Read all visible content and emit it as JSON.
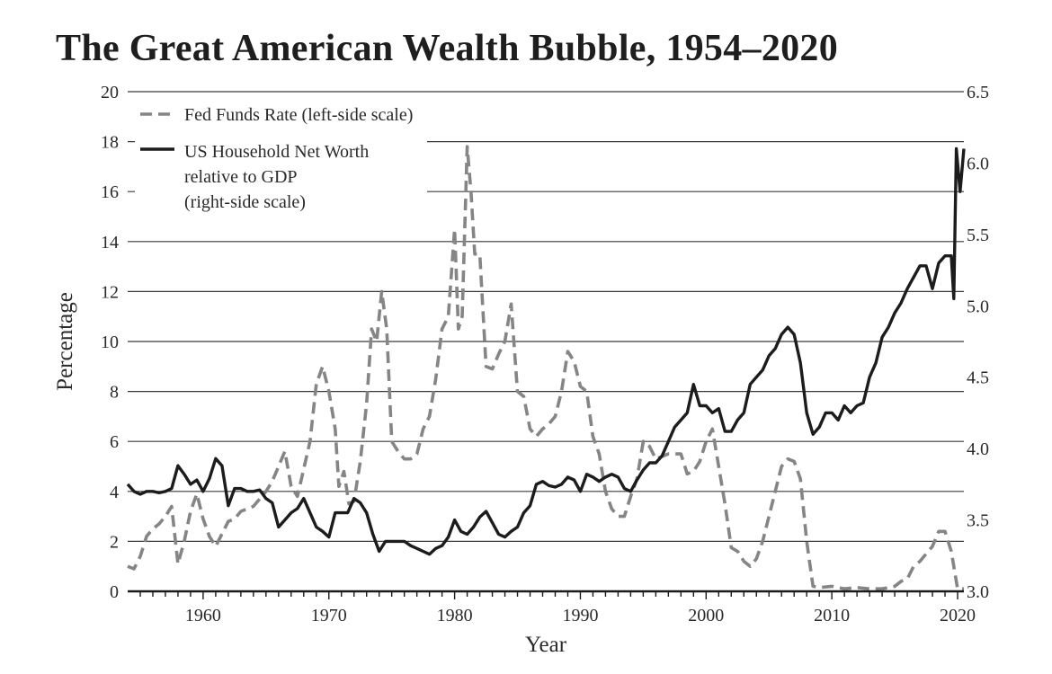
{
  "title": "The Great American Wealth Bubble, 1954–2020",
  "chart_data": {
    "type": "line",
    "title": "The Great American Wealth Bubble, 1954–2020",
    "xlabel": "Year",
    "ylabel": "Percentage",
    "xlim": [
      1954,
      2020.5
    ],
    "ylim": [
      0,
      20
    ],
    "y2lim": [
      3.0,
      6.5
    ],
    "x_ticks": [
      "1960",
      "1970",
      "1980",
      "1990",
      "2000",
      "2010",
      "2020"
    ],
    "y_ticks": [
      "0",
      "2",
      "4",
      "6",
      "8",
      "10",
      "12",
      "14",
      "16",
      "18",
      "20"
    ],
    "y2_ticks": [
      "3.0",
      "3.5",
      "4.0",
      "4.5",
      "5.0",
      "5.5",
      "6.0",
      "6.5"
    ],
    "grid": true,
    "legend": {
      "placement": "top-left",
      "fed_label": "Fed Funds Rate (left-side scale)",
      "nw_label_lines": [
        "US Household Net Worth",
        "relative to GDP",
        "(right-side scale)"
      ]
    },
    "series": [
      {
        "name": "Fed Funds Rate (left-side scale)",
        "axis": "left",
        "style": "dashed",
        "color": "#858585",
        "x": [
          1954.0,
          1954.5,
          1955.0,
          1955.5,
          1956.0,
          1956.5,
          1957.0,
          1957.5,
          1958.0,
          1958.5,
          1959.0,
          1959.5,
          1960.0,
          1960.5,
          1961.0,
          1961.5,
          1962.0,
          1962.5,
          1963.0,
          1964.0,
          1965.0,
          1965.5,
          1966.0,
          1966.5,
          1967.0,
          1967.5,
          1968.0,
          1968.5,
          1969.0,
          1969.5,
          1970.0,
          1970.5,
          1970.8,
          1971.2,
          1971.6,
          1972.0,
          1972.5,
          1973.0,
          1973.4,
          1973.8,
          1974.2,
          1974.6,
          1975.0,
          1975.5,
          1976.0,
          1976.5,
          1977.0,
          1977.5,
          1978.0,
          1978.5,
          1979.0,
          1979.5,
          1980.0,
          1980.3,
          1980.6,
          1981.0,
          1981.3,
          1981.6,
          1982.0,
          1982.5,
          1983.0,
          1983.5,
          1984.0,
          1984.5,
          1985.0,
          1985.5,
          1986.0,
          1986.5,
          1987.0,
          1987.5,
          1988.0,
          1988.5,
          1989.0,
          1989.5,
          1990.0,
          1990.5,
          1991.0,
          1991.5,
          1992.0,
          1992.5,
          1993.0,
          1993.5,
          1994.0,
          1994.5,
          1995.0,
          1995.5,
          1996.0,
          1997.0,
          1998.0,
          1998.5,
          1999.0,
          1999.5,
          2000.0,
          2000.5,
          2001.0,
          2001.5,
          2002.0,
          2002.5,
          2003.0,
          2003.5,
          2004.0,
          2004.5,
          2005.0,
          2005.5,
          2006.0,
          2006.5,
          2007.0,
          2007.5,
          2008.0,
          2008.5,
          2009.0,
          2010.0,
          2011.0,
          2012.0,
          2013.0,
          2014.0,
          2015.0,
          2015.5,
          2016.0,
          2016.5,
          2017.0,
          2017.5,
          2018.0,
          2018.5,
          2019.0,
          2019.5,
          2020.0,
          2020.5
        ],
        "values": [
          1.0,
          0.9,
          1.4,
          2.2,
          2.5,
          2.7,
          3.0,
          3.4,
          1.1,
          2.0,
          3.2,
          3.9,
          2.9,
          2.2,
          1.8,
          2.3,
          2.8,
          2.9,
          3.2,
          3.4,
          4.0,
          4.4,
          5.0,
          5.6,
          4.2,
          3.8,
          4.9,
          6.0,
          8.3,
          9.0,
          8.0,
          6.5,
          4.2,
          4.8,
          3.5,
          3.6,
          5.2,
          7.5,
          10.5,
          10.0,
          12.0,
          10.5,
          6.0,
          5.6,
          5.3,
          5.3,
          5.5,
          6.5,
          7.0,
          8.5,
          10.5,
          11.0,
          14.5,
          10.5,
          11.0,
          17.8,
          16.0,
          13.5,
          13.5,
          9.0,
          8.9,
          9.5,
          10.0,
          11.5,
          8.0,
          7.8,
          6.5,
          6.2,
          6.5,
          6.7,
          7.0,
          8.0,
          9.6,
          9.2,
          8.2,
          8.0,
          6.2,
          5.5,
          4.0,
          3.3,
          3.0,
          3.0,
          3.8,
          4.5,
          6.0,
          5.8,
          5.3,
          5.5,
          5.5,
          4.7,
          4.8,
          5.2,
          6.0,
          6.5,
          5.0,
          3.5,
          1.75,
          1.6,
          1.2,
          1.0,
          1.3,
          2.0,
          3.0,
          4.0,
          5.0,
          5.3,
          5.2,
          4.5,
          2.0,
          0.2,
          0.15,
          0.2,
          0.1,
          0.15,
          0.1,
          0.1,
          0.2,
          0.4,
          0.5,
          1.0,
          1.2,
          1.5,
          1.8,
          2.4,
          2.4,
          1.6,
          0.1,
          0.1
        ]
      },
      {
        "name": "US Household Net Worth relative to GDP (right-side scale)",
        "axis": "right",
        "style": "solid",
        "color": "#1c1c1c",
        "x": [
          1954.0,
          1954.5,
          1955.0,
          1955.5,
          1956.0,
          1956.5,
          1957.0,
          1957.5,
          1958.0,
          1958.5,
          1959.0,
          1959.5,
          1960.0,
          1960.5,
          1961.0,
          1961.5,
          1962.0,
          1962.5,
          1963.0,
          1963.5,
          1964.0,
          1964.5,
          1965.0,
          1965.5,
          1966.0,
          1966.5,
          1967.0,
          1967.5,
          1968.0,
          1968.5,
          1969.0,
          1969.5,
          1970.0,
          1970.5,
          1971.0,
          1971.5,
          1972.0,
          1972.5,
          1973.0,
          1973.5,
          1974.0,
          1974.5,
          1975.0,
          1975.5,
          1976.0,
          1976.5,
          1977.0,
          1977.5,
          1978.0,
          1978.5,
          1979.0,
          1979.5,
          1980.0,
          1980.5,
          1981.0,
          1981.5,
          1982.0,
          1982.5,
          1983.0,
          1983.5,
          1984.0,
          1984.5,
          1985.0,
          1985.5,
          1986.0,
          1986.5,
          1987.0,
          1987.5,
          1988.0,
          1988.5,
          1989.0,
          1989.5,
          1990.0,
          1990.5,
          1991.0,
          1991.5,
          1992.0,
          1992.5,
          1993.0,
          1993.5,
          1994.0,
          1994.5,
          1995.0,
          1995.5,
          1996.0,
          1996.5,
          1997.0,
          1997.5,
          1998.0,
          1998.5,
          1999.0,
          1999.5,
          2000.0,
          2000.5,
          2001.0,
          2001.5,
          2002.0,
          2002.5,
          2003.0,
          2003.5,
          2004.0,
          2004.5,
          2005.0,
          2005.5,
          2006.0,
          2006.5,
          2007.0,
          2007.5,
          2008.0,
          2008.5,
          2009.0,
          2009.5,
          2010.0,
          2010.5,
          2011.0,
          2011.5,
          2012.0,
          2012.5,
          2013.0,
          2013.5,
          2014.0,
          2014.5,
          2015.0,
          2015.5,
          2016.0,
          2016.5,
          2017.0,
          2017.5,
          2018.0,
          2018.5,
          2019.0,
          2019.5,
          2019.7,
          2019.9,
          2020.2,
          2020.5
        ],
        "values": [
          3.75,
          3.7,
          3.68,
          3.7,
          3.7,
          3.69,
          3.7,
          3.72,
          3.88,
          3.82,
          3.75,
          3.78,
          3.7,
          3.79,
          3.93,
          3.88,
          3.6,
          3.72,
          3.72,
          3.7,
          3.7,
          3.71,
          3.65,
          3.62,
          3.45,
          3.5,
          3.55,
          3.58,
          3.65,
          3.55,
          3.45,
          3.42,
          3.38,
          3.55,
          3.55,
          3.55,
          3.65,
          3.62,
          3.55,
          3.4,
          3.28,
          3.35,
          3.35,
          3.35,
          3.35,
          3.32,
          3.3,
          3.28,
          3.26,
          3.3,
          3.32,
          3.38,
          3.5,
          3.42,
          3.4,
          3.45,
          3.52,
          3.56,
          3.48,
          3.4,
          3.38,
          3.42,
          3.45,
          3.55,
          3.6,
          3.75,
          3.77,
          3.74,
          3.73,
          3.75,
          3.8,
          3.78,
          3.7,
          3.82,
          3.8,
          3.77,
          3.8,
          3.82,
          3.8,
          3.72,
          3.7,
          3.78,
          3.85,
          3.9,
          3.9,
          3.95,
          4.05,
          4.15,
          4.2,
          4.25,
          4.45,
          4.3,
          4.3,
          4.25,
          4.28,
          4.12,
          4.12,
          4.2,
          4.25,
          4.45,
          4.5,
          4.55,
          4.65,
          4.7,
          4.8,
          4.85,
          4.8,
          4.6,
          4.25,
          4.1,
          4.15,
          4.25,
          4.25,
          4.2,
          4.3,
          4.25,
          4.3,
          4.32,
          4.5,
          4.6,
          4.78,
          4.85,
          4.95,
          5.02,
          5.12,
          5.2,
          5.28,
          5.28,
          5.12,
          5.3,
          5.35,
          5.35,
          5.05,
          6.1,
          5.8,
          6.1
        ]
      }
    ]
  }
}
